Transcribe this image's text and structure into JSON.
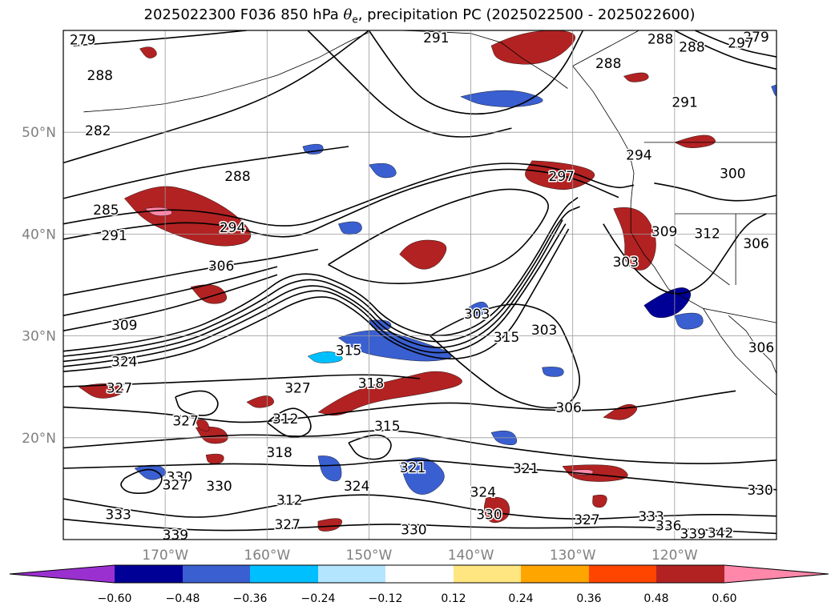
{
  "chart_data": {
    "type": "contour-map",
    "title": {
      "prefix": "2025022300 F036 850 hPa ",
      "theta": "θ",
      "theta_sub": "e",
      "suffix": ", precipitation PC (2025022500 - 2025022600)"
    },
    "map": {
      "lon_range": [
        -180,
        -110
      ],
      "lat_range": [
        10,
        60
      ],
      "grid": true
    },
    "x_ticks": [
      "170°W",
      "160°W",
      "150°W",
      "140°W",
      "130°W",
      "120°W"
    ],
    "x_tick_values": [
      -170,
      -160,
      -150,
      -140,
      -130,
      -120
    ],
    "y_ticks": [
      "50°N",
      "40°N",
      "30°N",
      "20°N"
    ],
    "y_tick_values": [
      50,
      40,
      30,
      20
    ],
    "contour_labels": [
      {
        "text": "279",
        "lon": -178.1,
        "lat": 59.0
      },
      {
        "text": "288",
        "lon": -176.4,
        "lat": 55.5
      },
      {
        "text": "282",
        "lon": -176.6,
        "lat": 50.1
      },
      {
        "text": "285",
        "lon": -175.8,
        "lat": 42.3
      },
      {
        "text": "291",
        "lon": -175.0,
        "lat": 39.8
      },
      {
        "text": "288",
        "lon": -162.9,
        "lat": 45.6
      },
      {
        "text": "294",
        "lon": -163.4,
        "lat": 40.6
      },
      {
        "text": "306",
        "lon": -164.5,
        "lat": 36.8
      },
      {
        "text": "309",
        "lon": -174.0,
        "lat": 31.0
      },
      {
        "text": "324",
        "lon": -174.0,
        "lat": 27.4
      },
      {
        "text": "327",
        "lon": -174.5,
        "lat": 24.8
      },
      {
        "text": "327",
        "lon": -168.0,
        "lat": 21.6
      },
      {
        "text": "327",
        "lon": -157.0,
        "lat": 24.8
      },
      {
        "text": "318",
        "lon": -149.8,
        "lat": 25.3
      },
      {
        "text": "312",
        "lon": -158.2,
        "lat": 21.8
      },
      {
        "text": "315",
        "lon": -148.2,
        "lat": 21.1
      },
      {
        "text": "318",
        "lon": -158.8,
        "lat": 18.5
      },
      {
        "text": "330",
        "lon": -168.6,
        "lat": 16.1
      },
      {
        "text": "330",
        "lon": -164.7,
        "lat": 15.2
      },
      {
        "text": "327",
        "lon": -169.0,
        "lat": 15.3
      },
      {
        "text": "312",
        "lon": -157.8,
        "lat": 13.8
      },
      {
        "text": "333",
        "lon": -174.6,
        "lat": 12.4
      },
      {
        "text": "339",
        "lon": -169.0,
        "lat": 10.4
      },
      {
        "text": "327",
        "lon": -158.0,
        "lat": 11.4
      },
      {
        "text": "324",
        "lon": -151.2,
        "lat": 15.2
      },
      {
        "text": "321",
        "lon": -145.7,
        "lat": 17.0
      },
      {
        "text": "330",
        "lon": -145.6,
        "lat": 10.9
      },
      {
        "text": "324",
        "lon": -138.8,
        "lat": 14.6
      },
      {
        "text": "330",
        "lon": -138.2,
        "lat": 12.4
      },
      {
        "text": "321",
        "lon": -134.6,
        "lat": 16.9
      },
      {
        "text": "327",
        "lon": -128.6,
        "lat": 11.9
      },
      {
        "text": "333",
        "lon": -122.3,
        "lat": 12.2
      },
      {
        "text": "336",
        "lon": -120.6,
        "lat": 11.3
      },
      {
        "text": "339",
        "lon": -118.2,
        "lat": 10.5
      },
      {
        "text": "342",
        "lon": -115.5,
        "lat": 10.6
      },
      {
        "text": "330",
        "lon": -111.6,
        "lat": 14.8
      },
      {
        "text": "306",
        "lon": -130.4,
        "lat": 22.9
      },
      {
        "text": "303",
        "lon": -132.8,
        "lat": 30.5
      },
      {
        "text": "315",
        "lon": -136.5,
        "lat": 29.8
      },
      {
        "text": "303",
        "lon": -139.4,
        "lat": 32.1
      },
      {
        "text": "315",
        "lon": -152.0,
        "lat": 28.5
      },
      {
        "text": "297",
        "lon": -131.1,
        "lat": 45.6
      },
      {
        "text": "294",
        "lon": -123.5,
        "lat": 47.7
      },
      {
        "text": "300",
        "lon": -114.3,
        "lat": 45.9
      },
      {
        "text": "303",
        "lon": -124.8,
        "lat": 37.2
      },
      {
        "text": "309",
        "lon": -121.0,
        "lat": 40.2
      },
      {
        "text": "312",
        "lon": -116.8,
        "lat": 40.0
      },
      {
        "text": "306",
        "lon": -112.0,
        "lat": 39.0
      },
      {
        "text": "306",
        "lon": -111.5,
        "lat": 28.8
      },
      {
        "text": "288",
        "lon": -121.4,
        "lat": 59.1
      },
      {
        "text": "288",
        "lon": -118.3,
        "lat": 58.3
      },
      {
        "text": "279",
        "lon": -112.0,
        "lat": 59.3
      },
      {
        "text": "291",
        "lon": -143.4,
        "lat": 59.2
      },
      {
        "text": "288",
        "lon": -126.5,
        "lat": 56.7
      },
      {
        "text": "291",
        "lon": -119.0,
        "lat": 52.9
      },
      {
        "text": "297",
        "lon": -113.5,
        "lat": 58.7
      }
    ],
    "colorbar": {
      "ticks": [
        "−0.60",
        "−0.48",
        "−0.36",
        "−0.24",
        "−0.12",
        "0.12",
        "0.24",
        "0.36",
        "0.48",
        "0.60"
      ],
      "levels": [
        -0.6,
        -0.48,
        -0.36,
        -0.24,
        -0.12,
        0.12,
        0.24,
        0.36,
        0.48,
        0.6
      ],
      "colors": [
        "#9b30d0",
        "#000096",
        "#3a5fd0",
        "#00bfff",
        "#b3e5ff",
        "#ffffff",
        "#ffe680",
        "#ffa500",
        "#ff4500",
        "#b22222",
        "#ff88aa"
      ],
      "extend": "both"
    }
  }
}
